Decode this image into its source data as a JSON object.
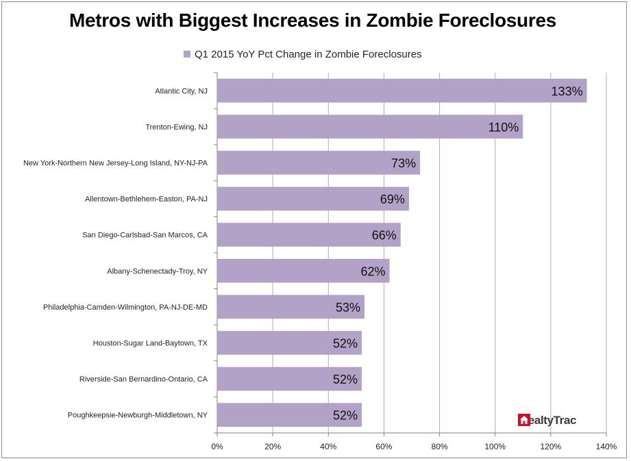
{
  "chart_data": {
    "type": "bar",
    "orientation": "horizontal",
    "title": "Metros with Biggest Increases in Zombie Foreclosures",
    "series": [
      {
        "name": "Q1 2015 YoY Pct Change in Zombie Foreclosures",
        "color": "#b3a2c7",
        "values": [
          133,
          110,
          73,
          69,
          66,
          62,
          53,
          52,
          52,
          52
        ]
      }
    ],
    "categories": [
      "Atlantic City, NJ",
      "Trenton-Ewing, NJ",
      "New York-Northern New Jersey-Long Island, NY-NJ-PA",
      "Allentown-Bethlehem-Easton, PA-NJ",
      "San Diego-Carlsbad-San Marcos, CA",
      "Albany-Schenectady-Troy, NY",
      "Philadelphia-Camden-Wilmington, PA-NJ-DE-MD",
      "Houston-Sugar Land-Baytown, TX",
      "Riverside-San Bernardino-Ontario, CA",
      "Poughkeepsie-Newburgh-Middletown, NY"
    ],
    "data_labels": [
      "133%",
      "110%",
      "73%",
      "69%",
      "66%",
      "62%",
      "53%",
      "52%",
      "52%",
      "52%"
    ],
    "xlim": [
      0,
      140
    ],
    "xticks": [
      0,
      20,
      40,
      60,
      80,
      100,
      120,
      140
    ],
    "xtick_labels": [
      "0%",
      "20%",
      "40%",
      "60%",
      "80%",
      "100%",
      "120%",
      "140%"
    ],
    "xlabel": "",
    "ylabel": "",
    "grid": "vertical",
    "legend_position": "top"
  },
  "logo": {
    "text": "RealtyTrac",
    "color": "#c8102e"
  }
}
